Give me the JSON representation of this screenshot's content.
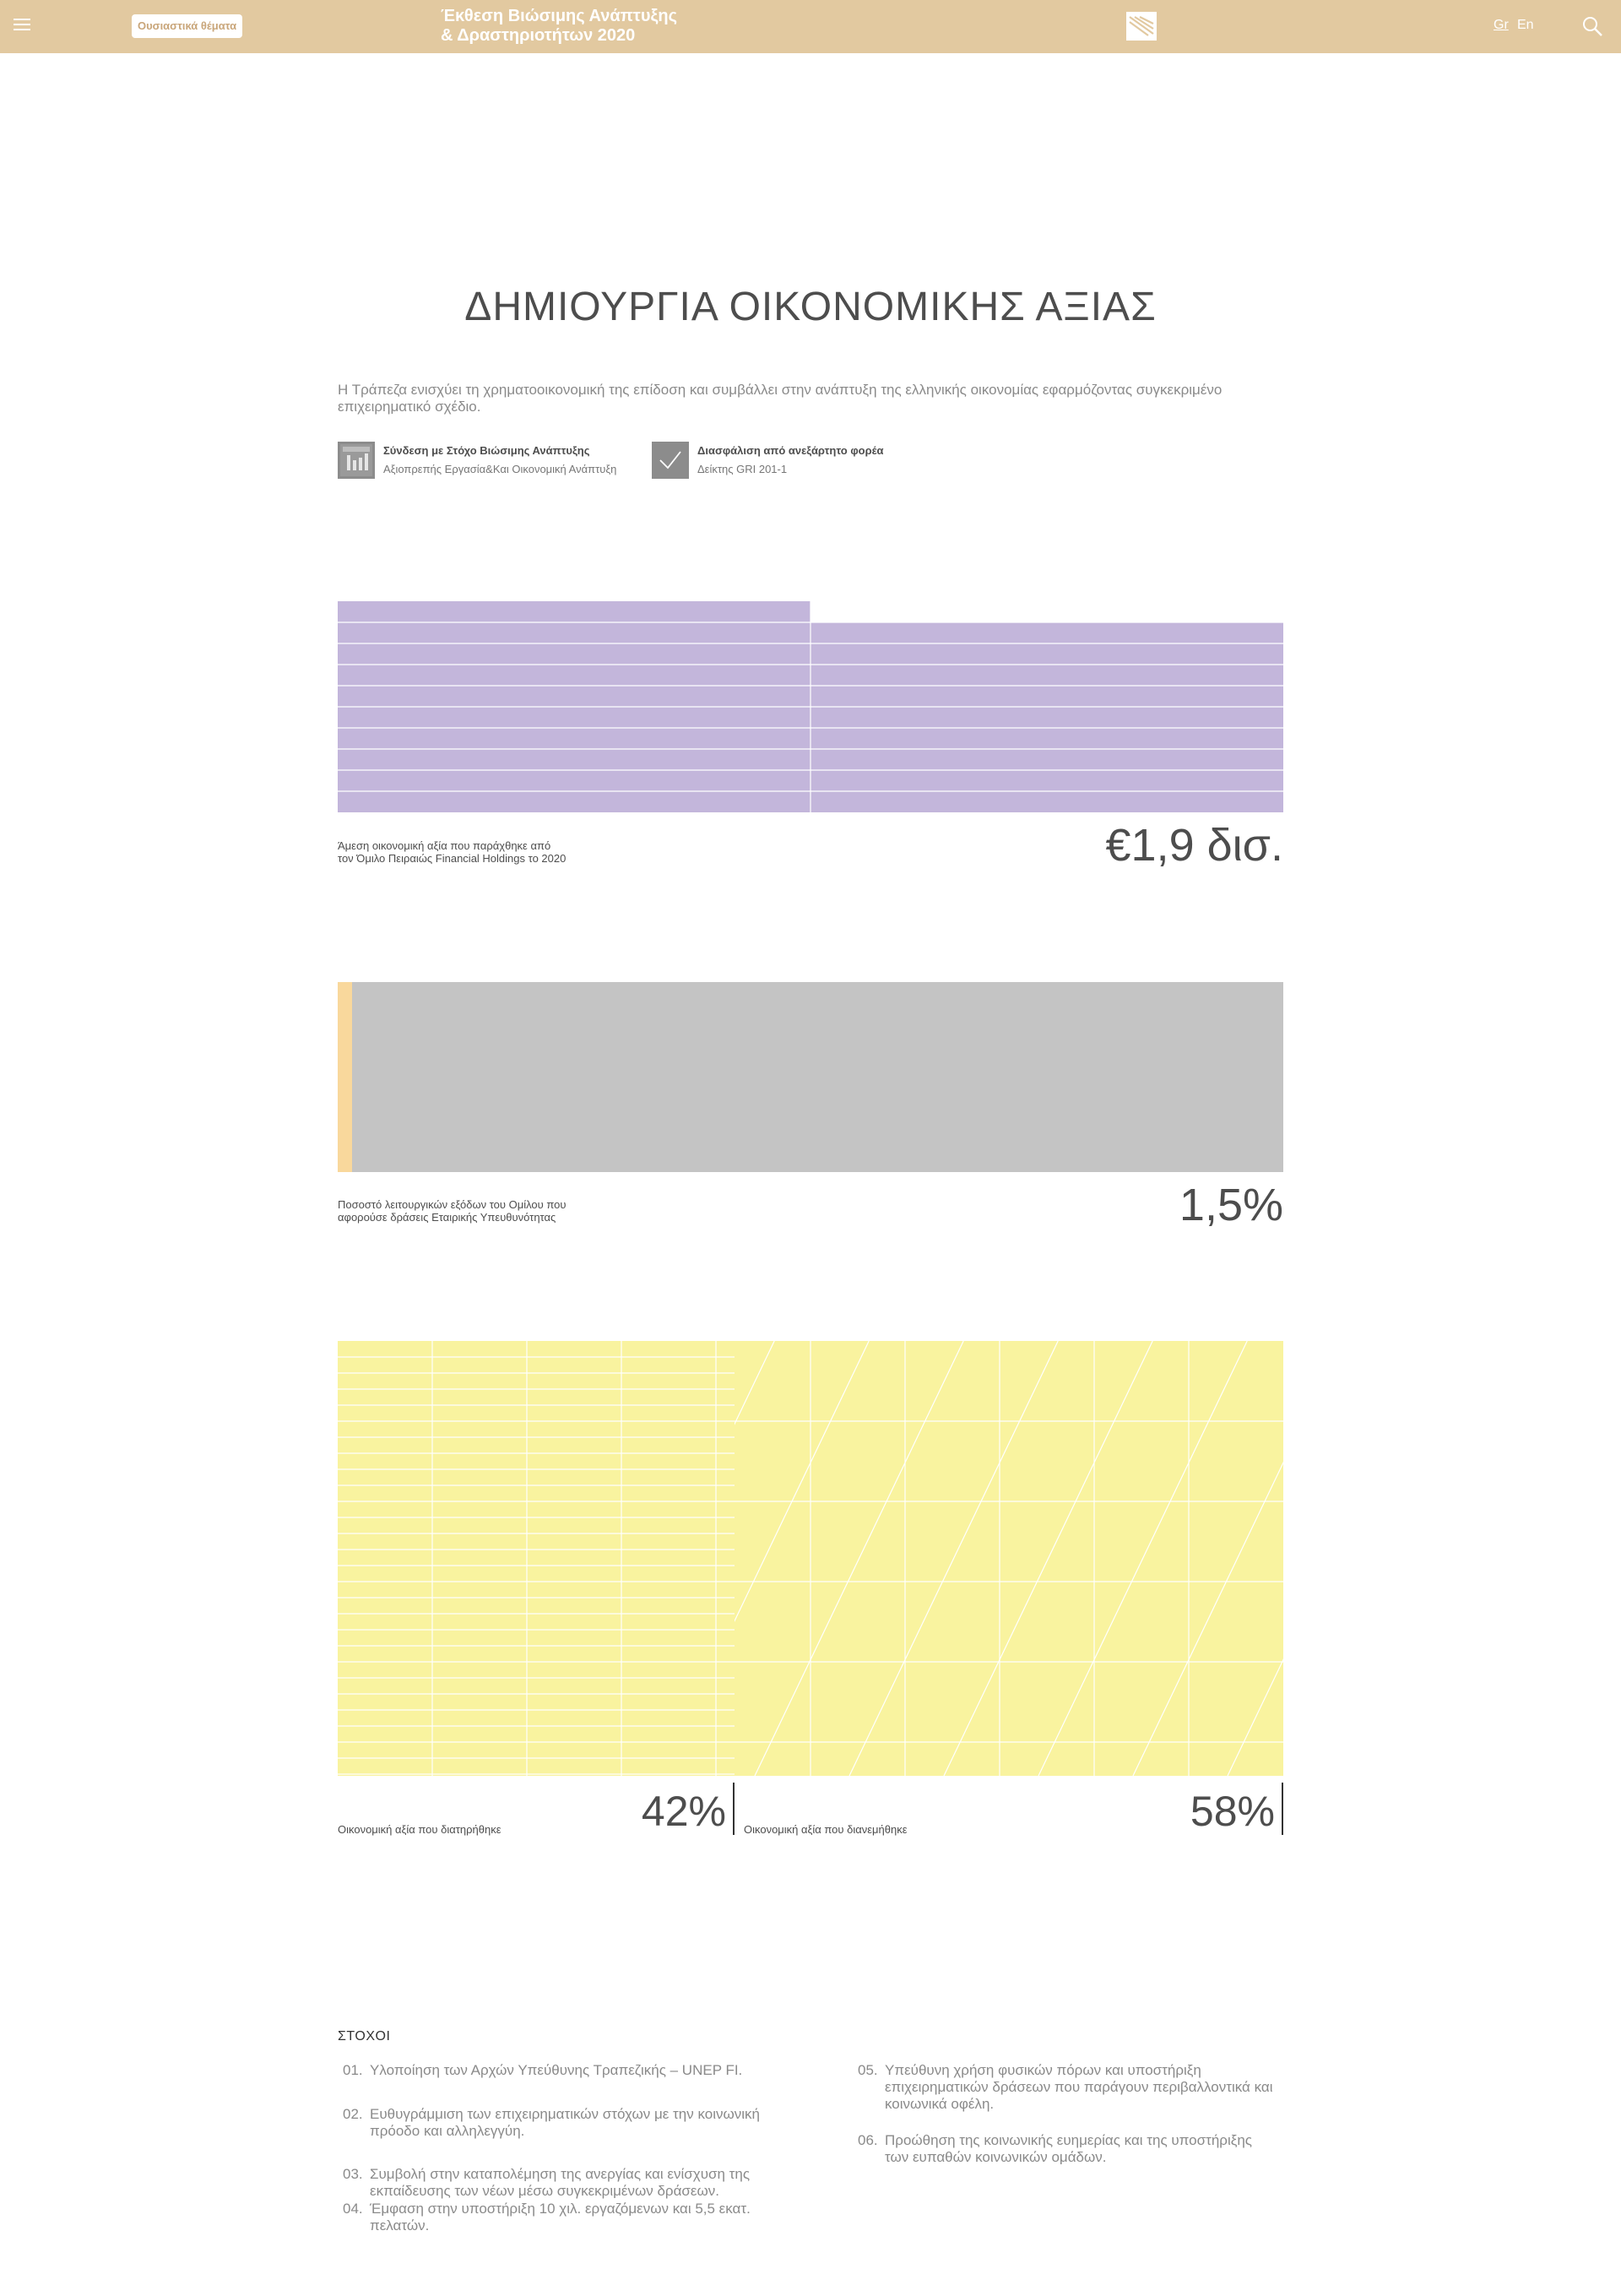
{
  "header": {
    "tag": "Ουσιαστικά θέματα",
    "title_line1": "Έκθεση Βιώσιμης Ανάπτυξης",
    "title_line2": "& Δραστηριοτήτων 2020",
    "lang_gr": "Gr",
    "lang_en": "En",
    "icons": [
      "hamburger-menu-icon",
      "bank-logo-icon",
      "search-icon"
    ]
  },
  "page": {
    "title": "ΔΗΜΙΟΥΡΓΙΑ ΟΙΚΟΝΟΜΙΚΗΣ ΑΞΙΑΣ",
    "intro": "Η Τράπεζα ενισχύει τη χρηματοοικονομική της επίδοση και συμβάλλει στην ανάπτυξη της ελληνικής οικονομίας εφαρμόζοντας συγκεκριμένο επιχειρηματικό σχέδιο."
  },
  "badges": [
    {
      "title": "Σύνδεση με Στόχο Βιώσιμης Ανάπτυξης",
      "subtitle": "Αξιοπρεπής Εργασία&Και Οικονομική Ανάπτυξη",
      "icon": "sdg-goal-icon"
    },
    {
      "title": "Διασφάλιση από ανεξάρτητο φορέα",
      "subtitle": "Δείκτης GRI 201-1",
      "icon": "checkmark-icon"
    }
  ],
  "stats": {
    "economic_value": {
      "label_line1": "Άμεση οικονομική αξία που παράχθηκε από",
      "label_line2": "τον Όμιλο Πειραιώς Financial Holdings το 2020",
      "value": "€1,9 δισ.",
      "color": "#c3b6db"
    },
    "csr_expenses": {
      "label_line1": "Ποσοστό λειτουργικών εξόδων του Ομίλου που",
      "label_line2": "αφορούσε δράσεις Εταιρικής Υπευθυνότητας",
      "value": "1,5%",
      "share": 0.015,
      "highlight_color": "#f9d89c",
      "base_color": "#c4c4c4"
    },
    "value_split": {
      "retained_label": "Οικονομική αξία που διατηρήθηκε",
      "retained_value": "42%",
      "retained_share": 0.42,
      "distributed_label": "Οικονομική αξία που διανεμήθηκε",
      "distributed_value": "58%",
      "distributed_share": 0.58,
      "color": "#f9f39f"
    }
  },
  "goals": {
    "heading": "ΣΤΟΧΟΙ",
    "items": [
      {
        "num": "01.",
        "line1": "Υλοποίηση των Αρχών Υπεύθυνης Τραπεζικής – UNEP FI.",
        "line2": ""
      },
      {
        "num": "02.",
        "line1": "Ευθυγράμμιση των επιχειρηματικών στόχων με την κοινωνική",
        "line2": "πρόοδο και αλληλεγγύη."
      },
      {
        "num": "03.",
        "line1": "Συμβολή στην καταπολέμηση της ανεργίας και ενίσχυση της",
        "line2": "εκπαίδευσης των νέων μέσω συγκεκριμένων δράσεων."
      },
      {
        "num": "04.",
        "line1": "Έμφαση στην υποστήριξη 10 χιλ. εργαζόμενων και 5,5 εκατ.",
        "line2": "πελατών."
      },
      {
        "num": "05.",
        "line1": "Υπεύθυνη χρήση φυσικών πόρων και υποστήριξη",
        "line2": "επιχειρηματικών δράσεων που παράγουν περιβαλλοντικά και",
        "line3": "κοινωνικά οφέλη."
      },
      {
        "num": "06.",
        "line1": "Προώθηση της κοινωνικής ευημερίας και της υποστήριξης",
        "line2": "των ευπαθών κοινωνικών ομάδων."
      }
    ]
  }
}
